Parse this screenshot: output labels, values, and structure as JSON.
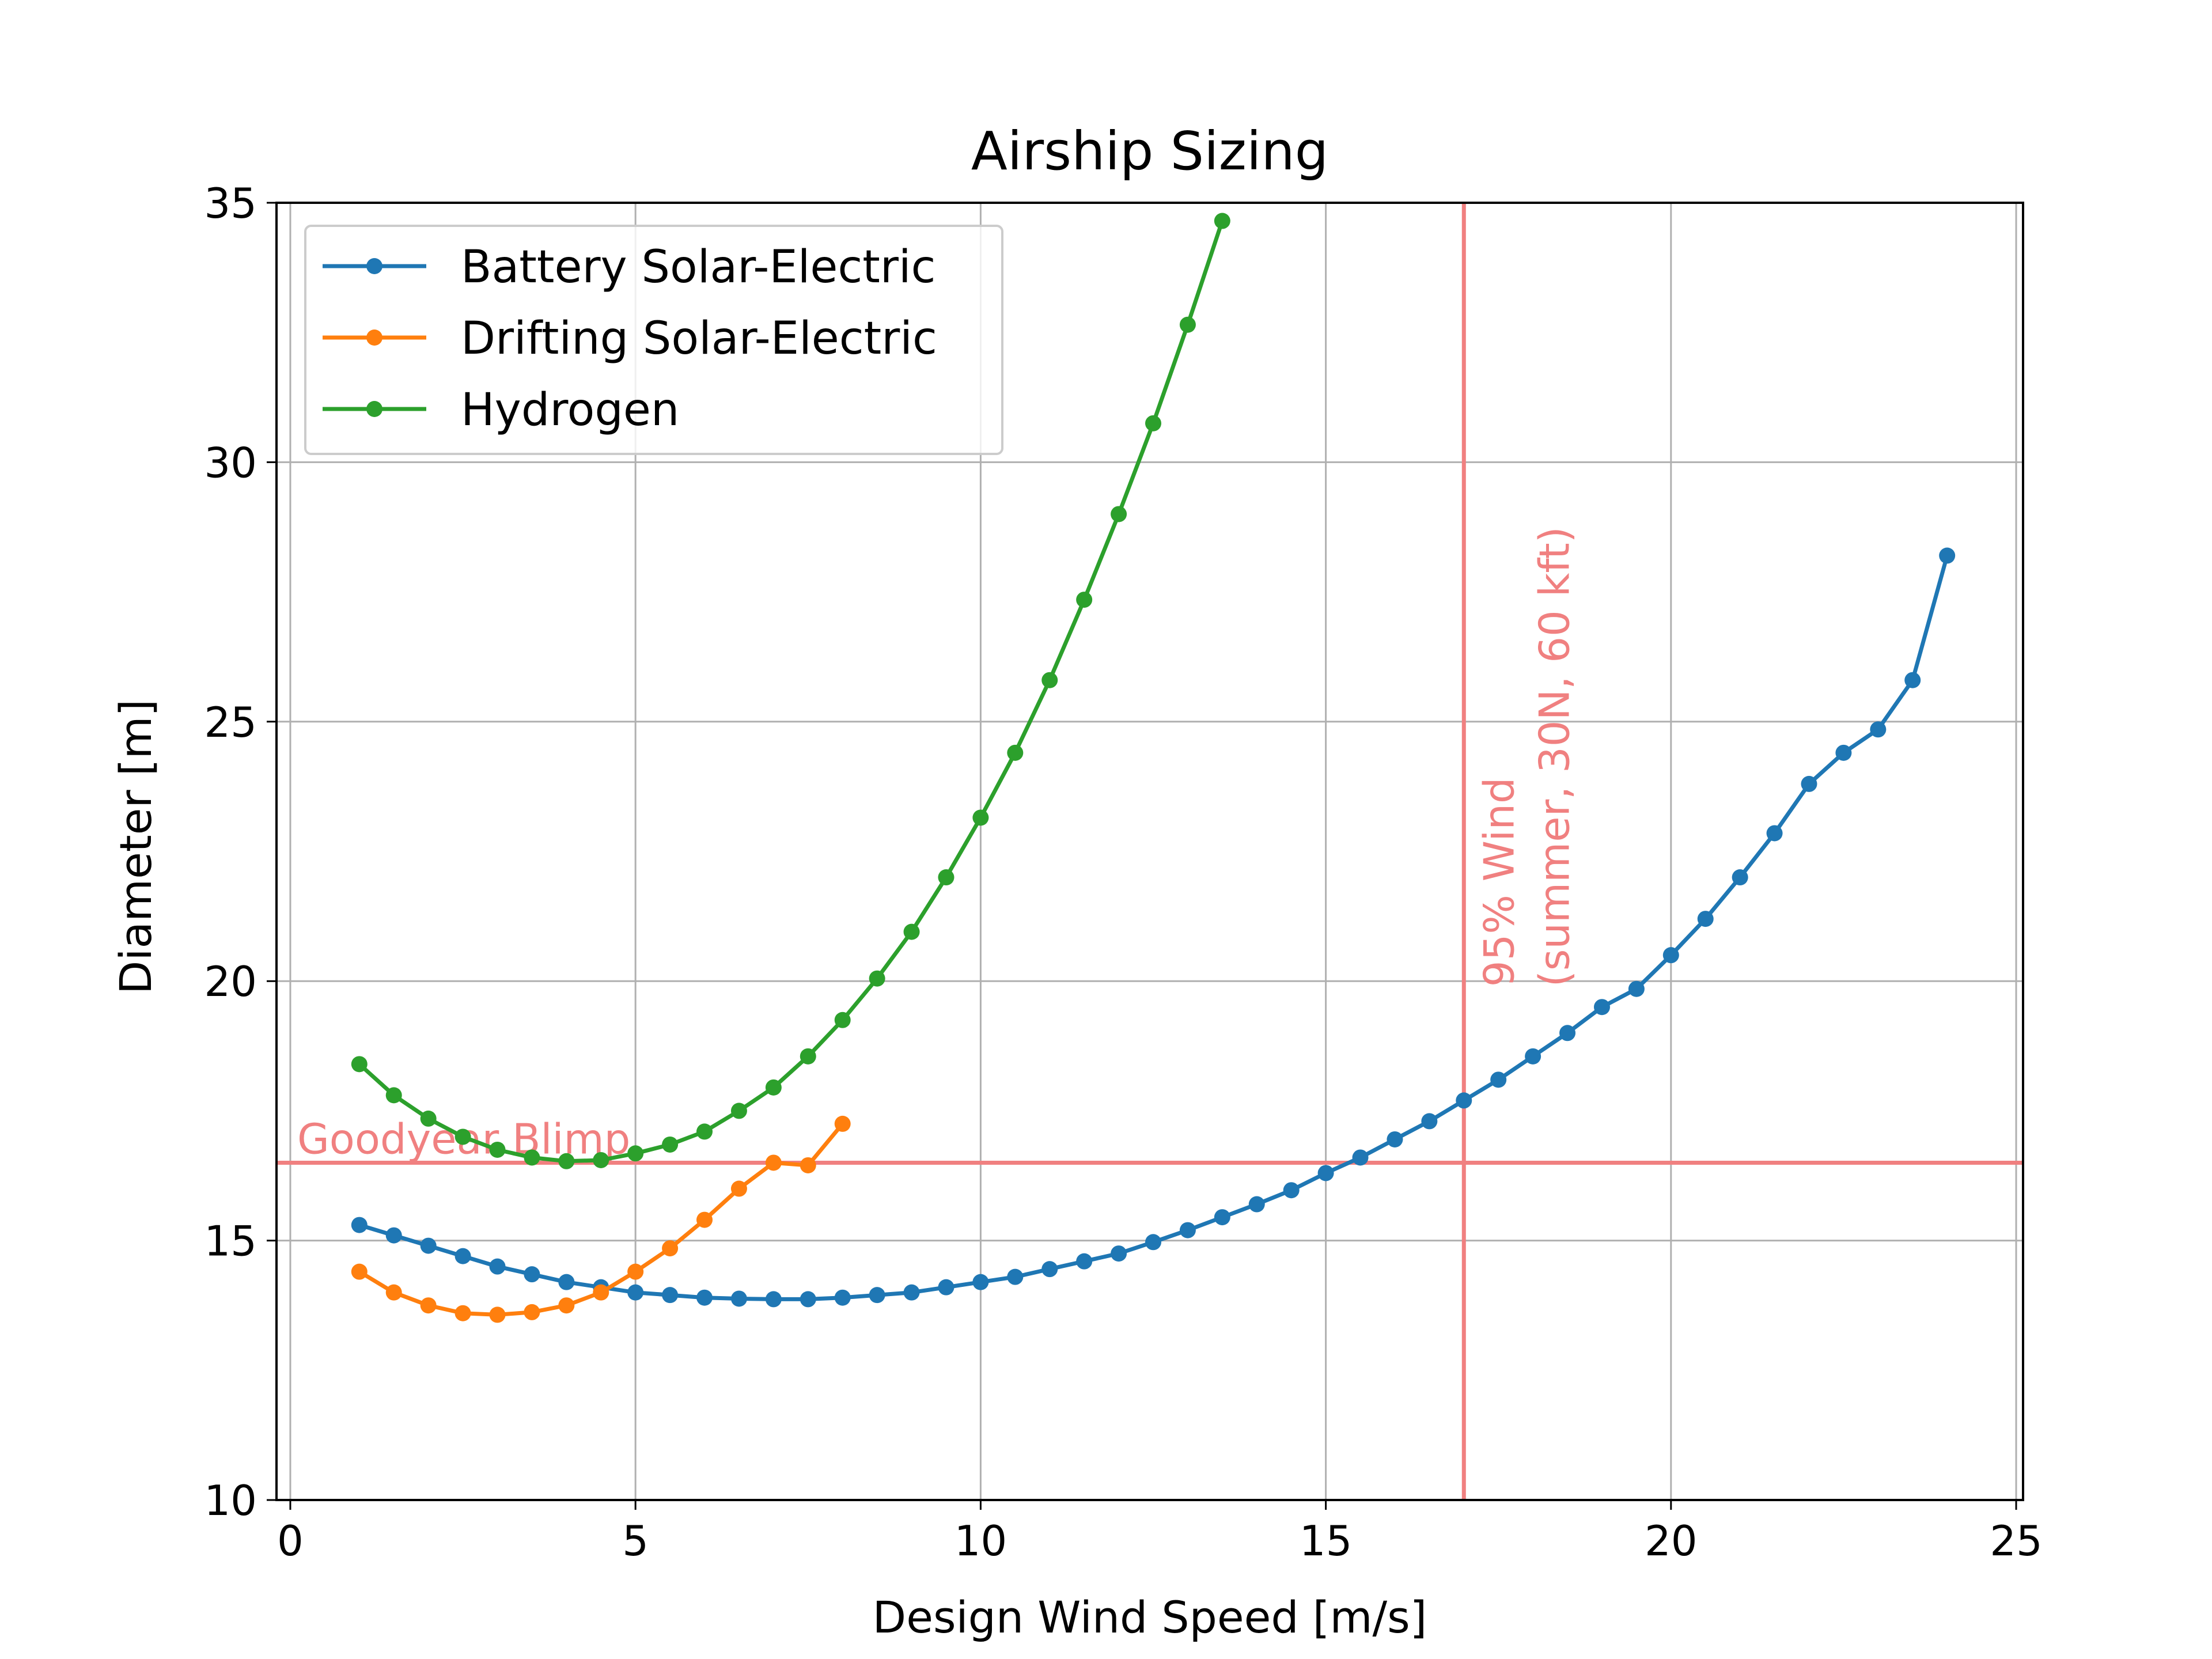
{
  "chart_data": {
    "type": "line",
    "title": "Airship Sizing",
    "xlabel": "Design Wind Speed [m/s]",
    "ylabel": "Diameter [m]",
    "xlim": [
      -0.2,
      25.1
    ],
    "ylim": [
      10,
      35
    ],
    "xticks": [
      0,
      5,
      10,
      15,
      20,
      25
    ],
    "yticks": [
      10,
      15,
      20,
      25,
      30,
      35
    ],
    "xtick_labels": [
      "0",
      "5",
      "10",
      "15",
      "20",
      "25"
    ],
    "ytick_labels": [
      "10",
      "15",
      "20",
      "25",
      "30",
      "35"
    ],
    "grid": true,
    "legend_location": "top-left",
    "series": [
      {
        "name": "Battery Solar-Electric",
        "color": "#1f77b4",
        "x": [
          1.0,
          1.5,
          2.0,
          2.5,
          3.0,
          3.5,
          4.0,
          4.5,
          5.0,
          5.5,
          6.0,
          6.5,
          7.0,
          7.5,
          8.0,
          8.5,
          9.0,
          9.5,
          10.0,
          10.5,
          11.0,
          11.5,
          12.0,
          12.5,
          13.0,
          13.5,
          14.0,
          14.5,
          15.0,
          15.5,
          16.0,
          16.5,
          17.0,
          17.5,
          18.0,
          18.5,
          19.0,
          19.5,
          20.0,
          20.5,
          21.0,
          21.5,
          22.0,
          22.5,
          23.0,
          23.5,
          24.0
        ],
        "y": [
          15.3,
          15.1,
          14.9,
          14.7,
          14.5,
          14.35,
          14.2,
          14.1,
          14.0,
          13.95,
          13.9,
          13.88,
          13.87,
          13.87,
          13.9,
          13.95,
          14.0,
          14.1,
          14.2,
          14.3,
          14.45,
          14.6,
          14.75,
          14.97,
          15.2,
          15.45,
          15.7,
          15.97,
          16.3,
          16.6,
          16.95,
          17.3,
          17.7,
          18.1,
          18.55,
          19.0,
          19.5,
          19.85,
          20.5,
          21.2,
          22.0,
          22.85,
          23.8,
          24.4,
          24.85,
          25.8,
          28.2
        ]
      },
      {
        "name": "Drifting Solar-Electric",
        "color": "#ff7f0e",
        "x": [
          1.0,
          1.5,
          2.0,
          2.5,
          3.0,
          3.5,
          4.0,
          4.5,
          5.0,
          5.5,
          6.0,
          6.5,
          7.0,
          7.5,
          8.0
        ],
        "y": [
          14.4,
          14.0,
          13.75,
          13.6,
          13.57,
          13.62,
          13.75,
          14.0,
          14.4,
          14.85,
          15.4,
          16.0,
          16.5,
          16.45,
          17.25
        ]
      },
      {
        "name": "Hydrogen",
        "color": "#2ca02c",
        "x": [
          1.0,
          1.5,
          2.0,
          2.5,
          3.0,
          3.5,
          4.0,
          4.5,
          5.0,
          5.5,
          6.0,
          6.5,
          7.0,
          7.5,
          8.0,
          8.5,
          9.0,
          9.5,
          10.0,
          10.5,
          11.0,
          11.5,
          12.0,
          12.5,
          13.0,
          13.5
        ],
        "y": [
          18.4,
          17.8,
          17.35,
          17.0,
          16.75,
          16.6,
          16.53,
          16.55,
          16.68,
          16.85,
          17.1,
          17.5,
          17.95,
          18.55,
          19.25,
          20.05,
          20.95,
          22.0,
          23.15,
          24.4,
          25.8,
          27.35,
          29.0,
          30.75,
          32.65,
          34.65
        ]
      }
    ],
    "reference_lines": [
      {
        "orientation": "horizontal",
        "value": 16.5,
        "color": "#f08080",
        "label": "Goodyear Blimp"
      },
      {
        "orientation": "vertical",
        "value": 17,
        "color": "#f08080",
        "label_line1": "95% Wind",
        "label_line2": "(summer, 30N, 60 kft)"
      }
    ]
  }
}
